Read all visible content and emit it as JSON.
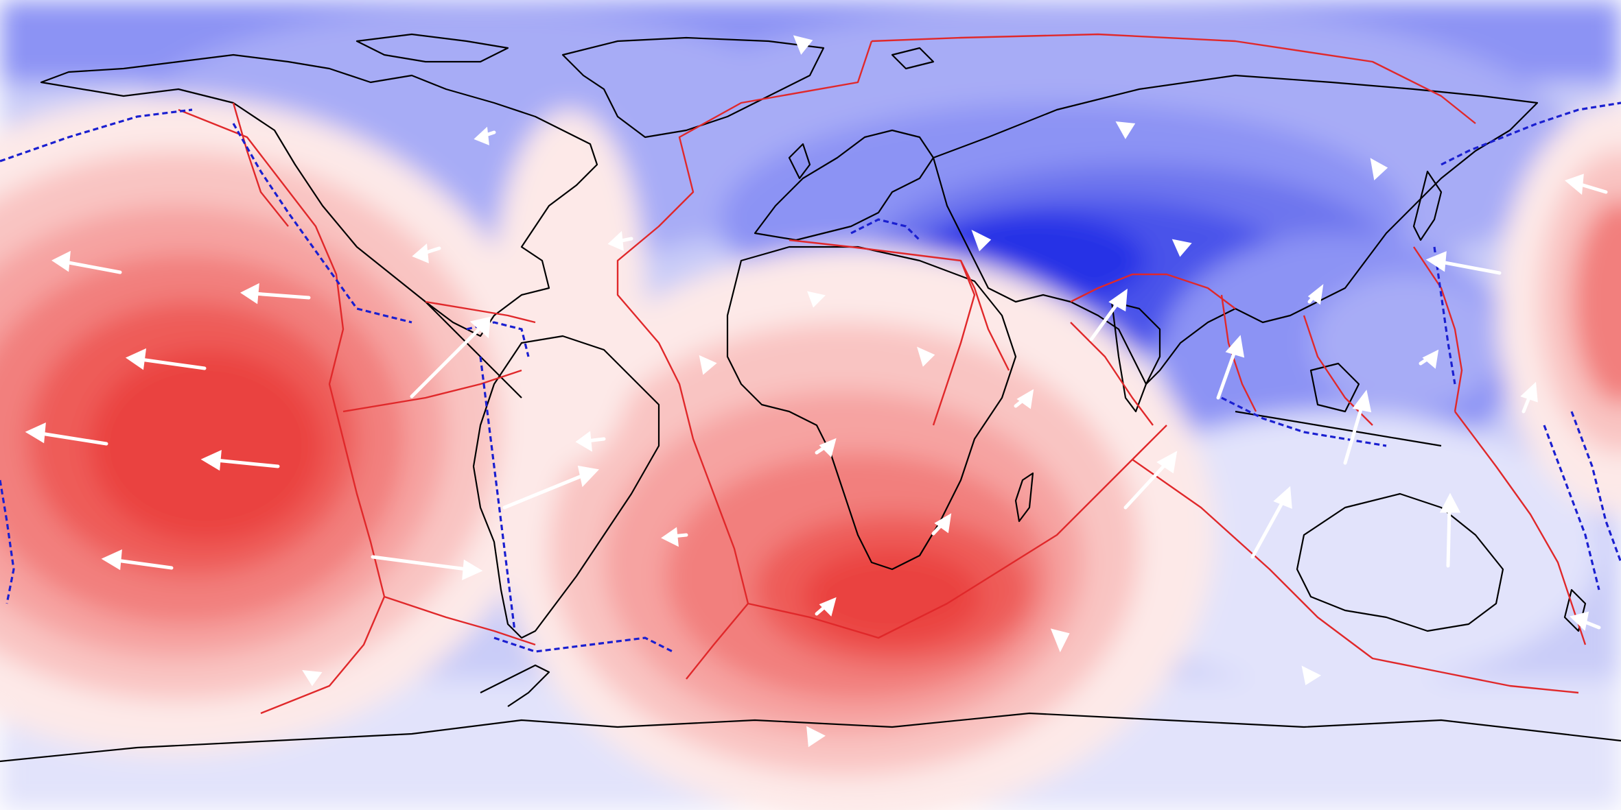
{
  "map": {
    "projection": "equirectangular",
    "field": "diverging",
    "colors": {
      "blue_0": "#8c93f4",
      "blue_1": "#a7acf6",
      "blue_2": "#c3c6f8",
      "blue_3": "#e2e3fb",
      "blue_4": "#6d74ee",
      "blue_5": "#4a52ea",
      "blue_6": "#2731e6",
      "red_0": "#fde9e8",
      "red_1": "#f9c4c2",
      "red_2": "#f6a3a1",
      "red_3": "#f27f7d",
      "red_4": "#ee5b59",
      "red_5": "#ea4341",
      "plate_boundary": "#e0282a",
      "subduction": "#1a1fd0",
      "coastline": "#000000",
      "arrow": "#ffffff"
    },
    "layers": [
      "field-contours",
      "coastlines",
      "plate-boundaries",
      "subduction-zones",
      "velocity-arrows"
    ]
  }
}
